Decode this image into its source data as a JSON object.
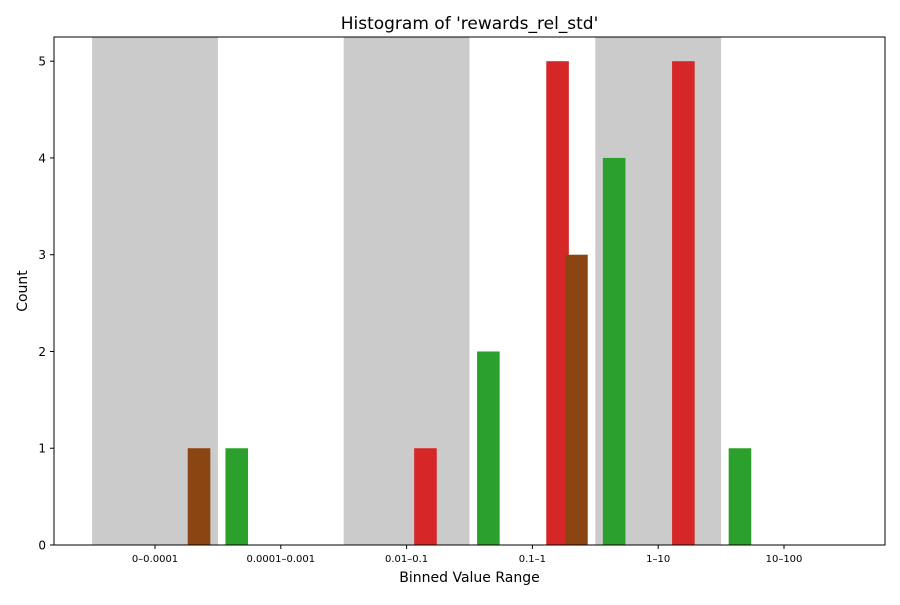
{
  "chart_data": {
    "type": "bar",
    "title": "Histogram of 'rewards_rel_std'",
    "xlabel": "Binned Value Range",
    "ylabel": "Count",
    "ylim": [
      0,
      5.25
    ],
    "yticks": [
      0,
      1,
      2,
      3,
      4,
      5
    ],
    "categories": [
      "0–0.0001",
      "0.0001–0.001",
      "0.01–0.1",
      "0.1–1",
      "1–10",
      "10–100"
    ],
    "shaded_categories": [
      0,
      2,
      4
    ],
    "shade_color": "#cbcbcb",
    "bars": [
      {
        "x": 0.35,
        "value": 1,
        "color": "#8b4513"
      },
      {
        "x": 0.65,
        "value": 1,
        "color": "#2ca02c"
      },
      {
        "x": 2.15,
        "value": 1,
        "color": "#d62728"
      },
      {
        "x": 2.65,
        "value": 2,
        "color": "#2ca02c"
      },
      {
        "x": 3.2,
        "value": 5,
        "color": "#d62728"
      },
      {
        "x": 3.35,
        "value": 3,
        "color": "#8b4513"
      },
      {
        "x": 3.65,
        "value": 4,
        "color": "#2ca02c"
      },
      {
        "x": 4.2,
        "value": 5,
        "color": "#d62728"
      },
      {
        "x": 4.65,
        "value": 1,
        "color": "#2ca02c"
      }
    ]
  }
}
